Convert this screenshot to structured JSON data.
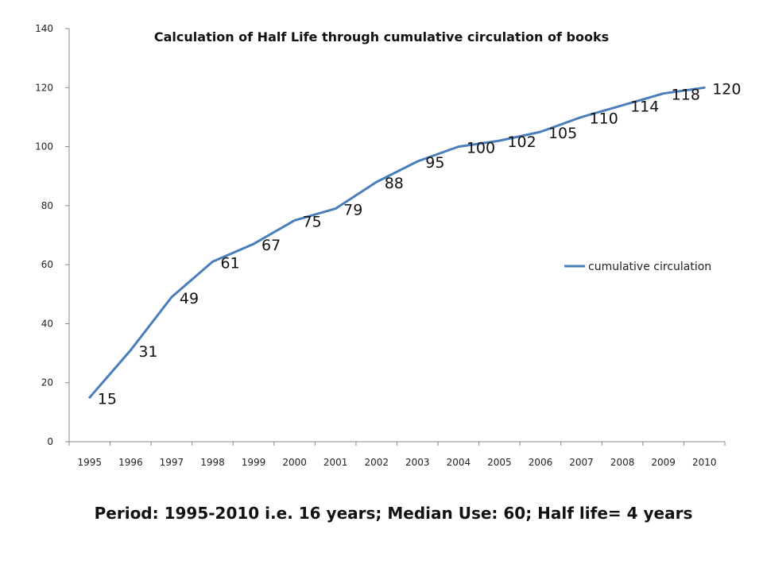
{
  "caption": "Period: 1995-2010 i.e. 16 years; Median Use: 60; Half life= 4 years",
  "chart_data": {
    "type": "line",
    "title": "Calculation of Half Life through cumulative circulation of books",
    "xlabel": "",
    "ylabel": "",
    "categories": [
      "1995",
      "1996",
      "1997",
      "1998",
      "1999",
      "2000",
      "2001",
      "2002",
      "2003",
      "2004",
      "2005",
      "2006",
      "2007",
      "2008",
      "2009",
      "2010"
    ],
    "series": [
      {
        "name": "cumulative circulation",
        "values": [
          15,
          31,
          49,
          61,
          67,
          75,
          79,
          88,
          95,
          100,
          102,
          105,
          110,
          114,
          118,
          120
        ],
        "color": "#4a7ebb"
      }
    ],
    "ylim": [
      0,
      140
    ],
    "yticks": [
      0,
      20,
      40,
      60,
      80,
      100,
      120,
      140
    ],
    "grid": false,
    "legend_position": "right",
    "data_labels": true
  }
}
